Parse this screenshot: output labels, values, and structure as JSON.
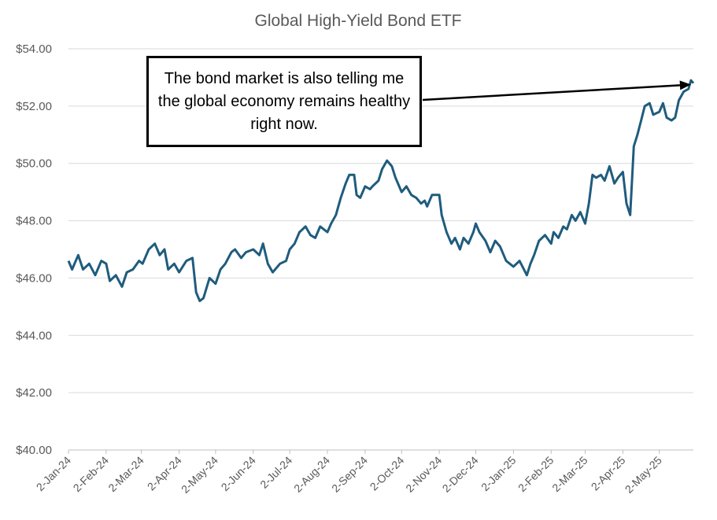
{
  "chart_data": {
    "type": "line",
    "title": "Global High-Yield Bond ETF",
    "xlabel": "",
    "ylabel": "",
    "ylim": [
      40,
      54
    ],
    "y_ticks": [
      "$40.00",
      "$42.00",
      "$44.00",
      "$46.00",
      "$48.00",
      "$50.00",
      "$52.00",
      "$54.00"
    ],
    "y_tick_values": [
      40,
      42,
      44,
      46,
      48,
      50,
      52,
      54
    ],
    "x_tick_labels": [
      "2-Jan-24",
      "2-Feb-24",
      "2-Mar-24",
      "2-Apr-24",
      "2-May-24",
      "2-Jun-24",
      "2-Jul-24",
      "2-Aug-24",
      "2-Sep-24",
      "2-Oct-24",
      "2-Nov-24",
      "2-Dec-24",
      "2-Jan-25",
      "2-Feb-25",
      "2-Mar-25",
      "2-Apr-25",
      "2-May-25"
    ],
    "x_tick_dates": [
      "2024-01-02",
      "2024-02-02",
      "2024-03-02",
      "2024-04-02",
      "2024-05-02",
      "2024-06-02",
      "2024-07-02",
      "2024-08-02",
      "2024-09-02",
      "2024-10-02",
      "2024-11-02",
      "2024-12-02",
      "2025-01-02",
      "2025-02-02",
      "2025-03-02",
      "2025-04-02",
      "2025-05-02"
    ],
    "x_range": [
      "2024-01-02",
      "2025-05-30"
    ],
    "grid": true,
    "series": [
      {
        "name": "",
        "color": "#1F5C7D",
        "points": [
          [
            "2024-01-02",
            46.6
          ],
          [
            "2024-01-05",
            46.3
          ],
          [
            "2024-01-10",
            46.8
          ],
          [
            "2024-01-14",
            46.3
          ],
          [
            "2024-01-19",
            46.5
          ],
          [
            "2024-01-24",
            46.1
          ],
          [
            "2024-01-29",
            46.6
          ],
          [
            "2024-02-02",
            46.5
          ],
          [
            "2024-02-05",
            45.9
          ],
          [
            "2024-02-10",
            46.1
          ],
          [
            "2024-02-15",
            45.7
          ],
          [
            "2024-02-19",
            46.2
          ],
          [
            "2024-02-24",
            46.3
          ],
          [
            "2024-02-29",
            46.6
          ],
          [
            "2024-03-03",
            46.5
          ],
          [
            "2024-03-08",
            47.0
          ],
          [
            "2024-03-13",
            47.2
          ],
          [
            "2024-03-17",
            46.8
          ],
          [
            "2024-03-21",
            47.0
          ],
          [
            "2024-03-24",
            46.3
          ],
          [
            "2024-03-29",
            46.5
          ],
          [
            "2024-04-02",
            46.2
          ],
          [
            "2024-04-08",
            46.6
          ],
          [
            "2024-04-13",
            46.7
          ],
          [
            "2024-04-16",
            45.5
          ],
          [
            "2024-04-19",
            45.2
          ],
          [
            "2024-04-22",
            45.3
          ],
          [
            "2024-04-27",
            46.0
          ],
          [
            "2024-05-02",
            45.8
          ],
          [
            "2024-05-06",
            46.3
          ],
          [
            "2024-05-10",
            46.5
          ],
          [
            "2024-05-15",
            46.9
          ],
          [
            "2024-05-18",
            47.0
          ],
          [
            "2024-05-23",
            46.7
          ],
          [
            "2024-05-27",
            46.9
          ],
          [
            "2024-06-02",
            47.0
          ],
          [
            "2024-06-07",
            46.8
          ],
          [
            "2024-06-10",
            47.2
          ],
          [
            "2024-06-14",
            46.5
          ],
          [
            "2024-06-18",
            46.2
          ],
          [
            "2024-06-24",
            46.5
          ],
          [
            "2024-06-29",
            46.6
          ],
          [
            "2024-07-02",
            47.0
          ],
          [
            "2024-07-06",
            47.2
          ],
          [
            "2024-07-10",
            47.6
          ],
          [
            "2024-07-15",
            47.8
          ],
          [
            "2024-07-19",
            47.5
          ],
          [
            "2024-07-23",
            47.4
          ],
          [
            "2024-07-27",
            47.8
          ],
          [
            "2024-08-02",
            47.6
          ],
          [
            "2024-08-05",
            47.9
          ],
          [
            "2024-08-09",
            48.2
          ],
          [
            "2024-08-13",
            48.8
          ],
          [
            "2024-08-17",
            49.3
          ],
          [
            "2024-08-20",
            49.6
          ],
          [
            "2024-08-24",
            49.6
          ],
          [
            "2024-08-26",
            48.9
          ],
          [
            "2024-08-29",
            48.8
          ],
          [
            "2024-09-02",
            49.2
          ],
          [
            "2024-09-06",
            49.1
          ],
          [
            "2024-09-08",
            49.2
          ],
          [
            "2024-09-13",
            49.4
          ],
          [
            "2024-09-16",
            49.8
          ],
          [
            "2024-09-20",
            50.1
          ],
          [
            "2024-09-24",
            49.9
          ],
          [
            "2024-09-27",
            49.5
          ],
          [
            "2024-10-02",
            49.0
          ],
          [
            "2024-10-06",
            49.2
          ],
          [
            "2024-10-10",
            48.9
          ],
          [
            "2024-10-14",
            48.8
          ],
          [
            "2024-10-18",
            48.6
          ],
          [
            "2024-10-21",
            48.7
          ],
          [
            "2024-10-23",
            48.5
          ],
          [
            "2024-10-27",
            48.9
          ],
          [
            "2024-11-02",
            48.9
          ],
          [
            "2024-11-04",
            48.2
          ],
          [
            "2024-11-08",
            47.6
          ],
          [
            "2024-11-12",
            47.2
          ],
          [
            "2024-11-15",
            47.4
          ],
          [
            "2024-11-19",
            47.0
          ],
          [
            "2024-11-22",
            47.4
          ],
          [
            "2024-11-26",
            47.2
          ],
          [
            "2024-11-30",
            47.6
          ],
          [
            "2024-12-02",
            47.9
          ],
          [
            "2024-12-05",
            47.6
          ],
          [
            "2024-12-10",
            47.3
          ],
          [
            "2024-12-14",
            46.9
          ],
          [
            "2024-12-18",
            47.3
          ],
          [
            "2024-12-22",
            47.1
          ],
          [
            "2024-12-27",
            46.6
          ],
          [
            "2025-01-02",
            46.4
          ],
          [
            "2025-01-07",
            46.6
          ],
          [
            "2025-01-13",
            46.1
          ],
          [
            "2025-01-16",
            46.5
          ],
          [
            "2025-01-19",
            46.8
          ],
          [
            "2025-01-23",
            47.3
          ],
          [
            "2025-01-28",
            47.5
          ],
          [
            "2025-02-02",
            47.2
          ],
          [
            "2025-02-04",
            47.6
          ],
          [
            "2025-02-08",
            47.4
          ],
          [
            "2025-02-12",
            47.8
          ],
          [
            "2025-02-15",
            47.7
          ],
          [
            "2025-02-19",
            48.2
          ],
          [
            "2025-02-22",
            48.0
          ],
          [
            "2025-02-26",
            48.3
          ],
          [
            "2025-03-02",
            47.9
          ],
          [
            "2025-03-05",
            48.6
          ],
          [
            "2025-03-08",
            49.6
          ],
          [
            "2025-03-11",
            49.5
          ],
          [
            "2025-03-15",
            49.6
          ],
          [
            "2025-03-18",
            49.4
          ],
          [
            "2025-03-22",
            49.9
          ],
          [
            "2025-03-26",
            49.3
          ],
          [
            "2025-03-29",
            49.5
          ],
          [
            "2025-04-02",
            49.7
          ],
          [
            "2025-04-05",
            48.6
          ],
          [
            "2025-04-08",
            48.2
          ],
          [
            "2025-04-11",
            50.6
          ],
          [
            "2025-04-14",
            51.0
          ],
          [
            "2025-04-17",
            51.5
          ],
          [
            "2025-04-20",
            52.0
          ],
          [
            "2025-04-24",
            52.1
          ],
          [
            "2025-04-27",
            51.7
          ],
          [
            "2025-05-02",
            51.8
          ],
          [
            "2025-05-05",
            52.1
          ],
          [
            "2025-05-08",
            51.6
          ],
          [
            "2025-05-12",
            51.5
          ],
          [
            "2025-05-15",
            51.6
          ],
          [
            "2025-05-18",
            52.2
          ],
          [
            "2025-05-22",
            52.5
          ],
          [
            "2025-05-26",
            52.6
          ],
          [
            "2025-05-28",
            52.9
          ],
          [
            "2025-05-30",
            52.8
          ]
        ]
      }
    ],
    "annotation": {
      "text": "The bond market is also telling me the global economy remains healthy right now.",
      "arrow_to": [
        "2025-05-28",
        52.75
      ]
    }
  }
}
